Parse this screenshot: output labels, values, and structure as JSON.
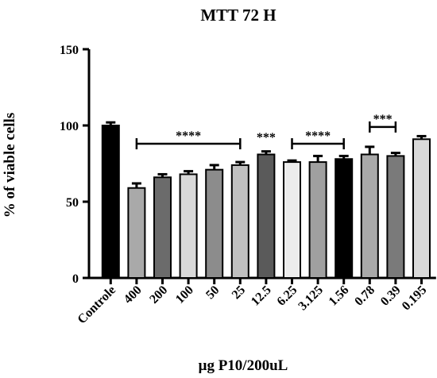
{
  "chart_data": {
    "type": "bar",
    "title": "MTT 72 H",
    "xlabel": "μg P10/200uL",
    "ylabel": "% of viable cells",
    "ylim": [
      0,
      150
    ],
    "yticks": [
      0,
      50,
      100,
      150
    ],
    "grid": false,
    "categories": [
      "Controle",
      "400",
      "200",
      "100",
      "50",
      "25",
      "12.5",
      "6.25",
      "3.125",
      "1.56",
      "0.78",
      "0.39",
      "0.195"
    ],
    "values": [
      100,
      59,
      66,
      68,
      71,
      74,
      81,
      76,
      76,
      78,
      81,
      80,
      91
    ],
    "errors": [
      2,
      3,
      2,
      2,
      3,
      2,
      2,
      1,
      4,
      2,
      5,
      2,
      2
    ],
    "colors": [
      "#000000",
      "#a9a9a9",
      "#6b6b6b",
      "#d9d9d9",
      "#8c8c8c",
      "#c0c0c0",
      "#5a5a5a",
      "#ececec",
      "#a0a0a0",
      "#000000",
      "#a9a9a9",
      "#7a7a7a",
      "#d9d9d9"
    ],
    "annotations": [
      {
        "text": "****",
        "from": "400",
        "to": "25",
        "y": 88
      },
      {
        "text": "***",
        "from": "12.5",
        "to": "12.5",
        "y": 87
      },
      {
        "text": "****",
        "from": "6.25",
        "to": "1.56",
        "y": 88
      },
      {
        "text": "***",
        "from": "0.78",
        "to": "0.39",
        "y": 99
      }
    ]
  }
}
